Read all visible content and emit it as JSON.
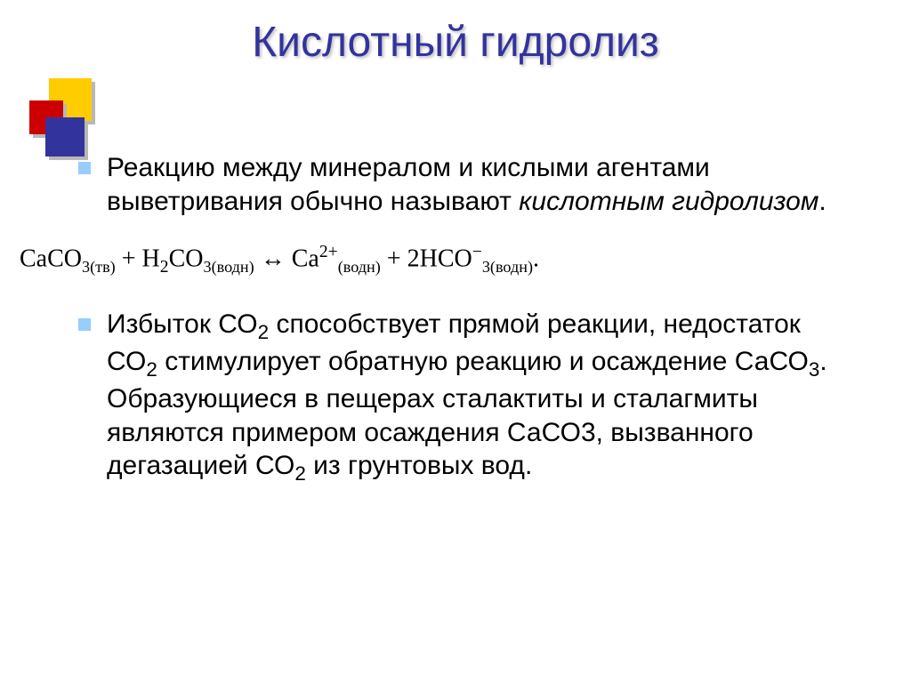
{
  "title": "Кислотный гидролиз",
  "colors": {
    "title_color": "#33339e",
    "bullet_color": "#99ccff",
    "logo_yellow": "#ffcc00",
    "logo_red": "#cc0000",
    "logo_blue": "#33339e",
    "text_color": "#000000",
    "background": "#ffffff"
  },
  "typography": {
    "title_fontsize": 48,
    "body_fontsize": 30,
    "equation_fontsize": 28,
    "body_font": "Arial, sans-serif",
    "equation_font": "Times New Roman, serif"
  },
  "para1_part1": "Реакцию между минералом и кислыми агентами выветривания обычно называют ",
  "para1_italic": "кислотным гидролизом",
  "para1_end": ".",
  "equation": {
    "lhs_term1": "CaCO",
    "lhs_term1_sub": "3(тв)",
    "plus": " + ",
    "lhs_term2_pre": "H",
    "lhs_term2_sub1": "2",
    "lhs_term2_mid": "CO",
    "lhs_term2_sub2": "3(водн)",
    "arrow": " ↔ ",
    "rhs_term1": "Ca",
    "rhs_term1_sup": "2+",
    "rhs_term1_sub": "(водн)",
    "rhs_plus": "   +   ",
    "rhs_term2_coeff": "2",
    "rhs_term2": "HCO",
    "rhs_term2_sup": "−",
    "rhs_term2_sub": "3(водн)",
    "period": "."
  },
  "para2_a": "Избыток СО",
  "para2_b": " способствует прямой реакции, недостаток СО",
  "para2_c": "  стимулирует обратную реакцию и осаждение СаСО",
  "para2_d": ". Образующиеся в пещерах сталактиты и сталагмиты являются примером осаждения СаСО3, вызванного дегазацией СО",
  "para2_e": "  из грунтовых вод.",
  "sub2": "2",
  "sub3": "3"
}
